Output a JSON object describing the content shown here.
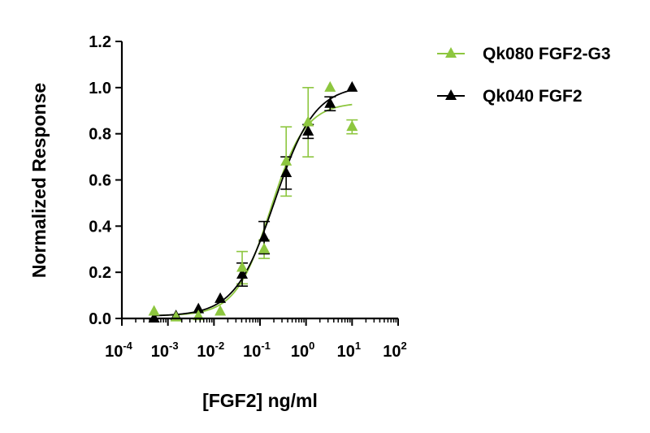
{
  "chart_data": {
    "type": "scatter",
    "title": "",
    "xlabel": "[FGF2] ng/ml",
    "ylabel": "Normalized Response",
    "xscale": "log10",
    "xlim": [
      0.0001,
      100
    ],
    "ylim": [
      0,
      1.2
    ],
    "x_tick_exponents": [
      "-4",
      "-3",
      "-2",
      "-1",
      "0",
      "1",
      "2"
    ],
    "x_tick_base": "10",
    "y_ticks": [
      "0.0",
      "0.2",
      "0.4",
      "0.6",
      "0.8",
      "1.0",
      "1.2"
    ],
    "grid": false,
    "legend_position": "top-right",
    "series": [
      {
        "name": "Qk080 FGF2-G3",
        "color": "#8dc63f",
        "marker": "triangle",
        "x": [
          0.0005,
          0.0015,
          0.0046,
          0.0137,
          0.041,
          0.123,
          0.37,
          1.11,
          3.33,
          10
        ],
        "y": [
          0.03,
          0.005,
          0.01,
          0.03,
          0.22,
          0.3,
          0.68,
          0.85,
          1.0,
          0.83
        ],
        "error": [
          0,
          0,
          0,
          0,
          0.07,
          0.04,
          0.15,
          0.15,
          0,
          0.03
        ],
        "fit": {
          "bottom": 0.012,
          "top": 0.935,
          "ec50": 0.17,
          "hill": 1.15
        }
      },
      {
        "name": "Qk040 FGF2",
        "color": "#000000",
        "marker": "triangle",
        "x": [
          0.0005,
          0.0015,
          0.0046,
          0.0137,
          0.041,
          0.123,
          0.37,
          1.11,
          3.33,
          10
        ],
        "y": [
          0.0,
          0.01,
          0.04,
          0.085,
          0.19,
          0.35,
          0.63,
          0.81,
          0.93,
          1.0
        ],
        "error": [
          0,
          0,
          0,
          0,
          0.05,
          0.07,
          0.07,
          0.03,
          0.03,
          0
        ],
        "fit": {
          "bottom": 0.01,
          "top": 1.01,
          "ec50": 0.21,
          "hill": 1.0
        }
      }
    ]
  }
}
